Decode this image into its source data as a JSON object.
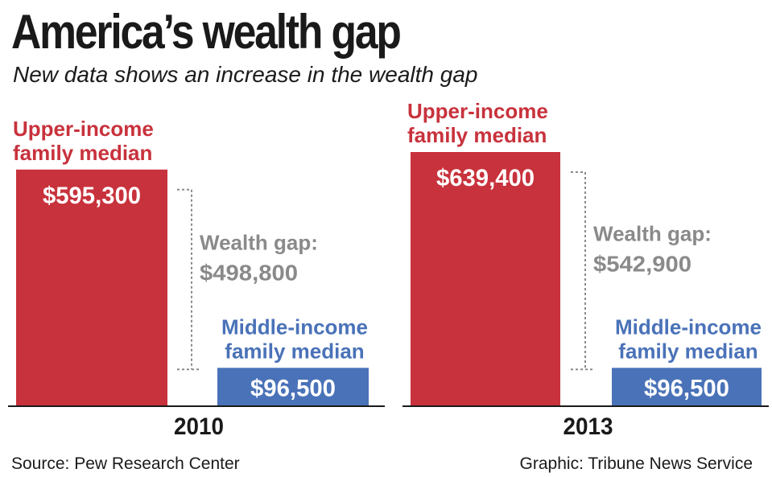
{
  "title": "America’s wealth gap",
  "subtitle": "New data shows an increase in the wealth gap",
  "footer": {
    "source": "Source: Pew Research Center",
    "credit": "Graphic: Tribune News Service"
  },
  "chart_data": {
    "type": "bar",
    "title": "America’s wealth gap",
    "subtitle": "New data shows an increase in the wealth gap",
    "groups": [
      {
        "year": "2010",
        "upper_label": [
          "Upper-income",
          "family median"
        ],
        "upper_value": 595300,
        "upper_value_label": "$595,300",
        "middle_label": [
          "Middle-income",
          "family median"
        ],
        "middle_value": 96500,
        "middle_value_label": "$96,500",
        "gap_label": "Wealth gap:",
        "gap_value": 498800,
        "gap_value_label": "$498,800"
      },
      {
        "year": "2013",
        "upper_label": [
          "Upper-income",
          "family median"
        ],
        "upper_value": 639400,
        "upper_value_label": "$639,400",
        "middle_label": [
          "Middle-income",
          "family median"
        ],
        "middle_value": 96500,
        "middle_value_label": "$96,500",
        "gap_label": "Wealth gap:",
        "gap_value": 542900,
        "gap_value_label": "$542,900"
      }
    ],
    "colors": {
      "upper": "#c8323c",
      "middle": "#4a72b8",
      "gap": "#8a8a8a",
      "axis": "#1a1a1a"
    },
    "ylim": [
      0,
      639400
    ]
  }
}
